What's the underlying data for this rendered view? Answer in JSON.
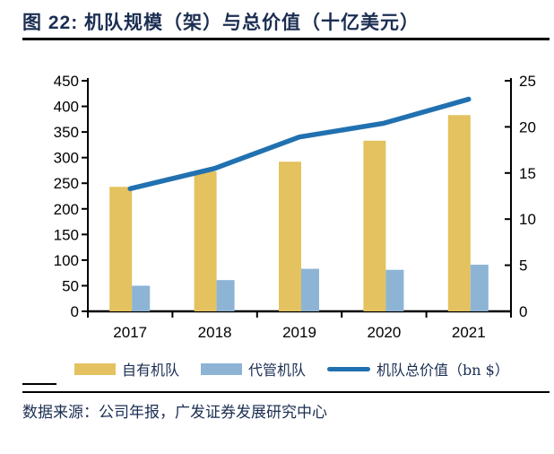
{
  "title": "图 22: 机队规模（架）与总价值（十亿美元）",
  "source": "数据来源：公司年报，广发证券发展研究中心",
  "colors": {
    "title_navy": "#1b2e52",
    "owned_bar": "#e3c25f",
    "managed_bar": "#8db4d5",
    "value_line": "#2171b0",
    "axis_black": "#000000"
  },
  "chart_data": {
    "type": "bar",
    "subtype": "grouped bars with secondary-axis line",
    "title": "机队规模（架）与总价值（十亿美元）",
    "categories": [
      "2017",
      "2018",
      "2019",
      "2020",
      "2021"
    ],
    "series": [
      {
        "name": "自有机队",
        "type": "bar",
        "axis": "left",
        "color": "#e3c25f",
        "values": [
          243,
          273,
          292,
          333,
          383
        ]
      },
      {
        "name": "代管机队",
        "type": "bar",
        "axis": "left",
        "color": "#8db4d5",
        "values": [
          50,
          61,
          83,
          81,
          91
        ]
      },
      {
        "name": "机队总价值（bn $）",
        "type": "line",
        "axis": "right",
        "color": "#2171b0",
        "values": [
          13.3,
          15.5,
          18.9,
          20.4,
          23.0
        ]
      }
    ],
    "left_axis": {
      "min": 0,
      "max": 450,
      "step": 50,
      "ticks": [
        0,
        50,
        100,
        150,
        200,
        250,
        300,
        350,
        400,
        450
      ]
    },
    "right_axis": {
      "min": 0,
      "max": 25,
      "step": 5,
      "ticks": [
        0,
        5,
        10,
        15,
        20,
        25
      ]
    },
    "grid": false,
    "legend_position": "bottom"
  }
}
